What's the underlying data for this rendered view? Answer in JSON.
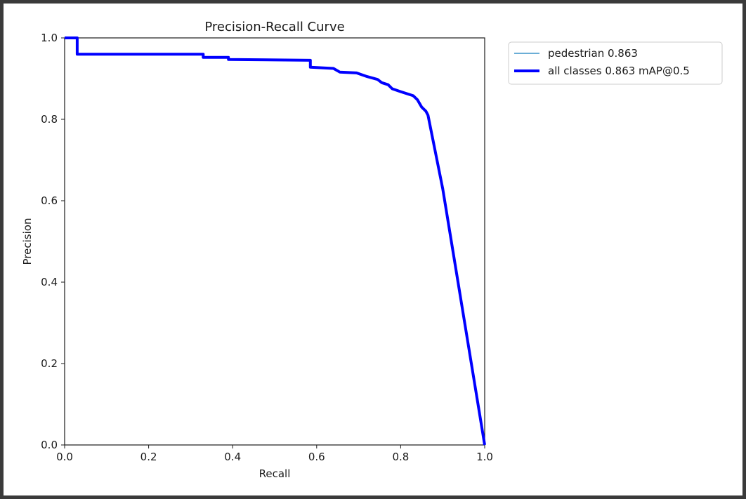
{
  "chart_data": {
    "type": "line",
    "title": "Precision-Recall Curve",
    "xlabel": "Recall",
    "ylabel": "Precision",
    "xlim": [
      0,
      1
    ],
    "ylim": [
      0,
      1
    ],
    "xticks": [
      "0.0",
      "0.2",
      "0.4",
      "0.6",
      "0.8",
      "1.0"
    ],
    "yticks": [
      "0.0",
      "0.2",
      "0.4",
      "0.6",
      "0.8",
      "1.0"
    ],
    "grid": false,
    "legend_position": "outside-top-right",
    "series": [
      {
        "name": "pedestrian 0.863",
        "color": "#6baed6",
        "x": [
          0.0,
          0.03,
          0.03,
          0.33,
          0.33,
          0.39,
          0.39,
          0.585,
          0.585,
          0.64,
          0.655,
          0.695,
          0.72,
          0.745,
          0.755,
          0.77,
          0.78,
          0.8,
          0.83,
          0.84,
          0.85,
          0.86,
          0.865,
          0.9,
          1.0
        ],
        "y": [
          1.0,
          1.0,
          0.96,
          0.96,
          0.952,
          0.952,
          0.947,
          0.945,
          0.928,
          0.925,
          0.916,
          0.914,
          0.905,
          0.898,
          0.89,
          0.885,
          0.875,
          0.868,
          0.858,
          0.848,
          0.83,
          0.82,
          0.81,
          0.63,
          0.0
        ]
      },
      {
        "name": "all classes 0.863 mAP@0.5",
        "color": "#0000ff",
        "x": [
          0.0,
          0.03,
          0.03,
          0.33,
          0.33,
          0.39,
          0.39,
          0.585,
          0.585,
          0.64,
          0.655,
          0.695,
          0.72,
          0.745,
          0.755,
          0.77,
          0.78,
          0.8,
          0.83,
          0.84,
          0.85,
          0.86,
          0.865,
          0.9,
          1.0
        ],
        "y": [
          1.0,
          1.0,
          0.96,
          0.96,
          0.952,
          0.952,
          0.947,
          0.945,
          0.928,
          0.925,
          0.916,
          0.914,
          0.905,
          0.898,
          0.89,
          0.885,
          0.875,
          0.868,
          0.858,
          0.848,
          0.83,
          0.82,
          0.81,
          0.63,
          0.0
        ]
      }
    ]
  }
}
